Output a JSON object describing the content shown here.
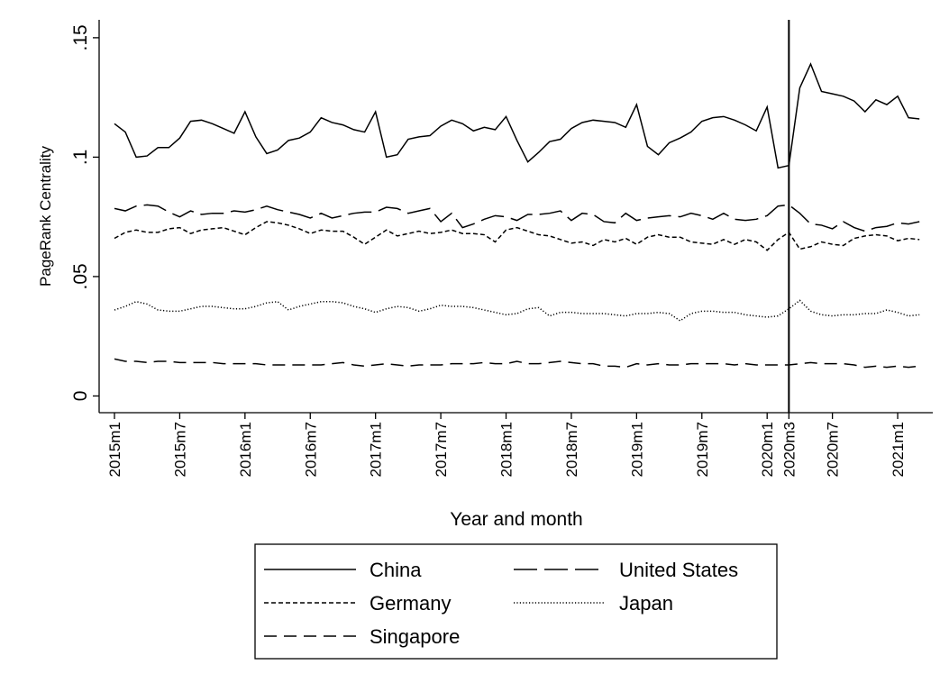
{
  "chart_data": {
    "type": "line",
    "y_label": "PageRank Centrality",
    "x_label": "Year and month",
    "categories": [
      "2015m1",
      null,
      null,
      null,
      null,
      null,
      "2015m7",
      null,
      null,
      null,
      null,
      null,
      "2016m1",
      null,
      null,
      null,
      null,
      null,
      "2016m7",
      null,
      null,
      null,
      null,
      null,
      "2017m1",
      null,
      null,
      null,
      null,
      null,
      "2017m7",
      null,
      null,
      null,
      null,
      null,
      "2018m1",
      null,
      null,
      null,
      null,
      null,
      "2018m7",
      null,
      null,
      null,
      null,
      null,
      "2019m1",
      null,
      null,
      null,
      null,
      null,
      "2019m7",
      null,
      null,
      null,
      null,
      null,
      "2020m1",
      null,
      "2020m3",
      null,
      null,
      null,
      "2020m7",
      null,
      null,
      null,
      null,
      null,
      "2021m1",
      null,
      null
    ],
    "xline": "2020m3",
    "ylim": [
      -0.007,
      0.1575
    ],
    "yticks": [
      0,
      {
        "value": 0.05,
        "label": ".05"
      },
      {
        "value": 0.1,
        "label": ".1"
      },
      {
        "value": 0.15,
        "label": ".15"
      }
    ],
    "series": [
      {
        "name": "China",
        "color": "#000000",
        "line_style": "solid",
        "values": [
          0.114,
          0.1105,
          0.1,
          0.1005,
          0.104,
          0.104,
          0.108,
          0.115,
          0.1155,
          0.114,
          0.112,
          0.11,
          0.119,
          0.1085,
          0.1015,
          0.103,
          0.107,
          0.108,
          0.1105,
          0.1165,
          0.1145,
          0.1135,
          0.1115,
          0.1105,
          0.119,
          0.1,
          0.101,
          0.1075,
          0.1085,
          0.109,
          0.113,
          0.1155,
          0.114,
          0.111,
          0.1125,
          0.1115,
          0.117,
          0.107,
          0.098,
          0.102,
          0.1065,
          0.1075,
          0.112,
          0.1145,
          0.1155,
          0.115,
          0.1145,
          0.1125,
          0.122,
          0.1045,
          0.101,
          0.106,
          0.108,
          0.1105,
          0.115,
          0.1165,
          0.117,
          0.1155,
          0.1135,
          0.111,
          0.121,
          0.0955,
          0.0965,
          0.129,
          0.139,
          0.1275,
          0.1265,
          0.1255,
          0.1235,
          0.119,
          0.124,
          0.122,
          0.1255,
          0.1165,
          0.116
        ]
      },
      {
        "name": "United States",
        "color": "#000000",
        "line_style": "longdash",
        "values": [
          0.0785,
          0.0775,
          0.0795,
          0.08,
          0.0795,
          0.077,
          0.075,
          0.0775,
          0.076,
          0.0765,
          0.0765,
          0.0775,
          0.077,
          0.078,
          0.0795,
          0.078,
          0.077,
          0.076,
          0.0745,
          0.0765,
          0.0745,
          0.0755,
          0.0765,
          0.077,
          0.077,
          0.079,
          0.0785,
          0.0765,
          0.0775,
          0.0785,
          0.073,
          0.0765,
          0.0705,
          0.072,
          0.074,
          0.0755,
          0.075,
          0.0735,
          0.076,
          0.076,
          0.0765,
          0.0775,
          0.0735,
          0.0765,
          0.076,
          0.073,
          0.0725,
          0.0765,
          0.0735,
          0.0745,
          0.075,
          0.0755,
          0.075,
          0.0765,
          0.0755,
          0.074,
          0.0765,
          0.074,
          0.0735,
          0.074,
          0.0755,
          0.0795,
          0.08,
          0.0765,
          0.072,
          0.0715,
          0.07,
          0.073,
          0.0705,
          0.069,
          0.0705,
          0.071,
          0.0725,
          0.072,
          0.073
        ]
      },
      {
        "name": "Germany",
        "color": "#000000",
        "line_style": "shortdash",
        "values": [
          0.066,
          0.0685,
          0.0695,
          0.0685,
          0.0685,
          0.07,
          0.0705,
          0.068,
          0.0695,
          0.07,
          0.0705,
          0.069,
          0.0675,
          0.0705,
          0.073,
          0.0725,
          0.0715,
          0.07,
          0.068,
          0.0695,
          0.069,
          0.069,
          0.0665,
          0.0635,
          0.0665,
          0.0695,
          0.067,
          0.068,
          0.069,
          0.068,
          0.0685,
          0.0695,
          0.068,
          0.068,
          0.0675,
          0.0645,
          0.0695,
          0.0705,
          0.069,
          0.0675,
          0.067,
          0.0655,
          0.064,
          0.0645,
          0.063,
          0.0655,
          0.0645,
          0.066,
          0.0635,
          0.0665,
          0.0675,
          0.0665,
          0.0665,
          0.0645,
          0.064,
          0.0635,
          0.0655,
          0.0635,
          0.0655,
          0.0645,
          0.061,
          0.0655,
          0.0685,
          0.0615,
          0.0625,
          0.0645,
          0.0635,
          0.063,
          0.066,
          0.067,
          0.0675,
          0.067,
          0.065,
          0.066,
          0.0655
        ]
      },
      {
        "name": "Japan",
        "color": "#000000",
        "line_style": "dot",
        "values": [
          0.036,
          0.0375,
          0.0395,
          0.0385,
          0.036,
          0.0355,
          0.0355,
          0.0365,
          0.0375,
          0.0375,
          0.037,
          0.0365,
          0.0365,
          0.0375,
          0.039,
          0.0395,
          0.036,
          0.0375,
          0.0385,
          0.0395,
          0.0395,
          0.039,
          0.0375,
          0.0365,
          0.035,
          0.0365,
          0.0375,
          0.037,
          0.0355,
          0.0365,
          0.038,
          0.0375,
          0.0375,
          0.037,
          0.036,
          0.035,
          0.034,
          0.0345,
          0.0365,
          0.037,
          0.0335,
          0.035,
          0.035,
          0.0345,
          0.0345,
          0.0345,
          0.034,
          0.0335,
          0.0345,
          0.0345,
          0.035,
          0.0345,
          0.0315,
          0.0345,
          0.0355,
          0.0355,
          0.035,
          0.035,
          0.034,
          0.0335,
          0.033,
          0.0335,
          0.0365,
          0.04,
          0.0355,
          0.034,
          0.0335,
          0.034,
          0.034,
          0.0345,
          0.0345,
          0.036,
          0.035,
          0.0335,
          0.034
        ]
      },
      {
        "name": "Singapore",
        "color": "#000000",
        "line_style": "dash",
        "values": [
          0.0155,
          0.0145,
          0.0145,
          0.014,
          0.0145,
          0.0145,
          0.014,
          0.014,
          0.014,
          0.014,
          0.0135,
          0.0135,
          0.0135,
          0.0135,
          0.013,
          0.013,
          0.013,
          0.013,
          0.013,
          0.013,
          0.0135,
          0.014,
          0.013,
          0.0125,
          0.013,
          0.0135,
          0.013,
          0.0125,
          0.013,
          0.013,
          0.013,
          0.0135,
          0.0135,
          0.0135,
          0.014,
          0.0135,
          0.0135,
          0.0145,
          0.0135,
          0.0135,
          0.014,
          0.0145,
          0.014,
          0.0135,
          0.0135,
          0.0125,
          0.0125,
          0.012,
          0.0135,
          0.013,
          0.0135,
          0.013,
          0.013,
          0.0135,
          0.0135,
          0.0135,
          0.0135,
          0.013,
          0.0135,
          0.013,
          0.013,
          0.013,
          0.013,
          0.0135,
          0.014,
          0.0135,
          0.0135,
          0.0135,
          0.013,
          0.012,
          0.0125,
          0.012,
          0.0125,
          0.012,
          0.0125
        ]
      }
    ]
  }
}
